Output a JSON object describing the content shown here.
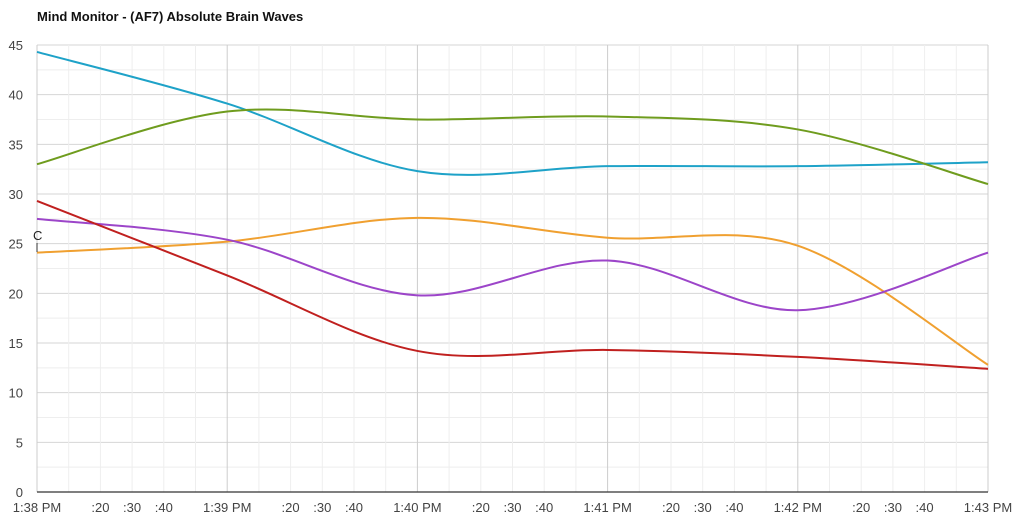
{
  "chart_data": {
    "type": "line",
    "title": "Mind Monitor - (AF7) Absolute Brain Waves",
    "xlabel": "",
    "ylabel": "",
    "ylim": [
      0,
      45
    ],
    "y_ticks": [
      "0",
      "5",
      "10",
      "15",
      "20",
      "25",
      "30",
      "35",
      "40",
      "45"
    ],
    "x_range_seconds": [
      0,
      300
    ],
    "x_ticks": [
      {
        "label": "1:38 PM",
        "t": 0
      },
      {
        "label": ":20",
        "t": 20
      },
      {
        "label": ":30",
        "t": 30
      },
      {
        "label": ":40",
        "t": 40
      },
      {
        "label": "1:39 PM",
        "t": 60
      },
      {
        "label": ":20",
        "t": 80
      },
      {
        "label": ":30",
        "t": 90
      },
      {
        "label": ":40",
        "t": 100
      },
      {
        "label": "1:40 PM",
        "t": 120
      },
      {
        "label": ":20",
        "t": 140
      },
      {
        "label": ":30",
        "t": 150
      },
      {
        "label": ":40",
        "t": 160
      },
      {
        "label": "1:41 PM",
        "t": 180
      },
      {
        "label": ":20",
        "t": 200
      },
      {
        "label": ":30",
        "t": 210
      },
      {
        "label": ":40",
        "t": 220
      },
      {
        "label": "1:42 PM",
        "t": 240
      },
      {
        "label": ":20",
        "t": 260
      },
      {
        "label": ":30",
        "t": 270
      },
      {
        "label": ":40",
        "t": 280
      },
      {
        "label": "1:43 PM",
        "t": 300
      }
    ],
    "grid": true,
    "x": [
      0,
      60,
      120,
      180,
      240,
      300
    ],
    "series": [
      {
        "name": "blue",
        "color": "#1ea2c8",
        "values": [
          44.3,
          39.1,
          32.3,
          32.8,
          32.8,
          33.2
        ]
      },
      {
        "name": "green",
        "color": "#6f9c1e",
        "values": [
          33.0,
          38.3,
          37.5,
          37.8,
          36.5,
          31.0
        ]
      },
      {
        "name": "orange",
        "color": "#f0a030",
        "values": [
          24.1,
          25.2,
          27.6,
          25.6,
          24.8,
          12.8
        ]
      },
      {
        "name": "purple",
        "color": "#9c45c9",
        "values": [
          27.5,
          25.4,
          19.8,
          23.3,
          18.3,
          24.1
        ]
      },
      {
        "name": "red",
        "color": "#c0201f",
        "values": [
          29.3,
          21.8,
          14.2,
          14.3,
          13.6,
          12.4
        ]
      }
    ],
    "annotations": [
      {
        "text": "C",
        "t": 0
      }
    ]
  }
}
